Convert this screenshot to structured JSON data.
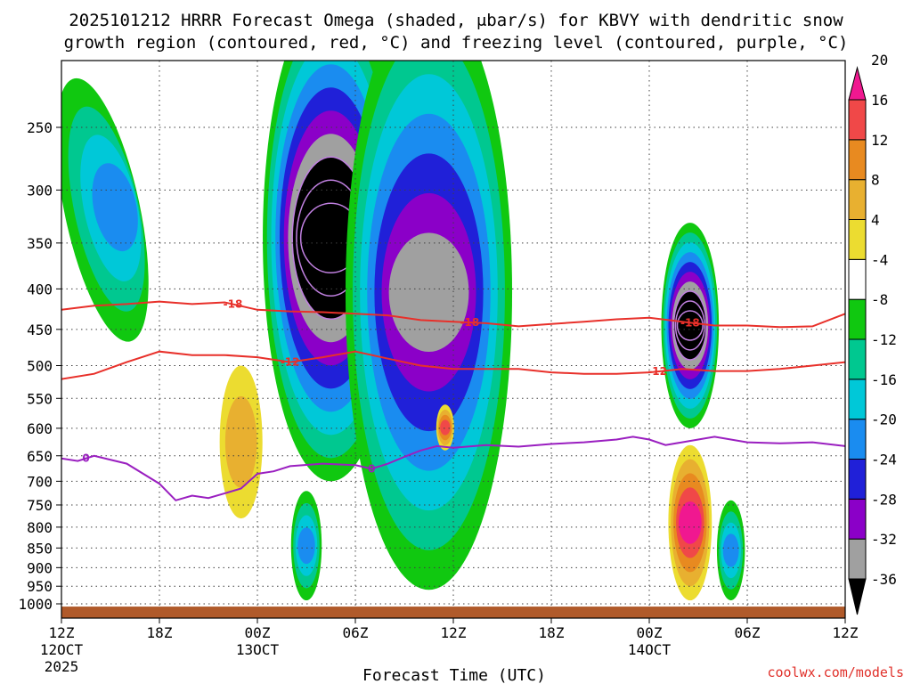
{
  "title": {
    "line1": "2025101212 HRRR Forecast Omega (shaded, μbar/s) for KBVY with dendritic snow",
    "line2": "growth region (contoured, red, °C) and freezing level (contoured, purple, °C)"
  },
  "credit": "coolwx.com/models",
  "chart_data": {
    "type": "heatmap",
    "title": "2025101212 HRRR Forecast Omega (shaded, μbar/s) for KBVY with dendritic snow growth region (contoured, red, °C) and freezing level (contoured, purple, °C)",
    "xlabel": "Forecast Time (UTC)",
    "ylabel": "",
    "xlim_hours": [
      0,
      48
    ],
    "x_ticks": [
      {
        "hour": 0,
        "label": "12Z",
        "sub1": "12OCT",
        "sub2": "2025"
      },
      {
        "hour": 6,
        "label": "18Z"
      },
      {
        "hour": 12,
        "label": "00Z",
        "sub1": "13OCT"
      },
      {
        "hour": 18,
        "label": "06Z"
      },
      {
        "hour": 24,
        "label": "12Z"
      },
      {
        "hour": 30,
        "label": "18Z"
      },
      {
        "hour": 36,
        "label": "00Z",
        "sub1": "14OCT"
      },
      {
        "hour": 42,
        "label": "06Z"
      },
      {
        "hour": 48,
        "label": "12Z"
      }
    ],
    "y_axis": {
      "variable": "pressure_hPa",
      "range": [
        1020,
        200
      ],
      "scale": "log",
      "inverted": true
    },
    "y_ticks": [
      250,
      300,
      350,
      400,
      450,
      500,
      550,
      600,
      650,
      700,
      750,
      800,
      850,
      900,
      950,
      1000
    ],
    "colorbar": {
      "levels": [
        -36,
        -32,
        -28,
        -24,
        -20,
        -16,
        -12,
        -8,
        -4,
        4,
        8,
        12,
        16,
        20
      ],
      "tick_labels": [
        "-36",
        "-32",
        "-28",
        "-24",
        "-20",
        "-16",
        "-12",
        "-8",
        "-4",
        "4",
        "8",
        "12",
        "16",
        "20"
      ],
      "colors": [
        "#000000",
        "#a0a0a0",
        "#8b00c8",
        "#2020d8",
        "#1a8cf0",
        "#00c8d8",
        "#00c890",
        "#10c810",
        "#ffffff",
        "#ecdc30",
        "#e8b030",
        "#e88a20",
        "#f04848",
        "#f01890"
      ]
    },
    "omega_features": [
      {
        "id": "ascent-early-upper",
        "hour": 2.5,
        "p_top": 215,
        "p_bot": 470,
        "min_omega": -16,
        "tilt_hours": 4
      },
      {
        "id": "ascent-main-column",
        "hour": 16.5,
        "p_top": 170,
        "p_bot": 700,
        "min_omega": -40
      },
      {
        "id": "ascent-lowlevel-day1",
        "hour": 15,
        "p_top": 720,
        "p_bot": 990,
        "min_omega": -16
      },
      {
        "id": "ascent-midday-column",
        "hour": 22.5,
        "p_top": 170,
        "p_bot": 960,
        "min_omega": -28
      },
      {
        "id": "ascent-lowlevel-late",
        "hour": 41,
        "p_top": 740,
        "p_bot": 990,
        "min_omega": -16
      },
      {
        "id": "ascent-second-max",
        "hour": 38.5,
        "p_top": 330,
        "p_bot": 600,
        "min_omega": -40
      },
      {
        "id": "descent-lowlevel-max",
        "hour": 38.5,
        "p_top": 630,
        "p_bot": 990,
        "max_omega": 22
      },
      {
        "id": "descent-midlevel-day1",
        "hour": 11,
        "p_top": 500,
        "p_bot": 780,
        "max_omega": 8
      },
      {
        "id": "descent-midlevel-day1b",
        "hour": 23.5,
        "p_top": 560,
        "p_bot": 640,
        "max_omega": 18
      }
    ],
    "series": [
      {
        "name": "-18C isotherm",
        "color": "#e8302a",
        "label": "-18",
        "x": [
          0,
          2,
          4,
          6,
          8,
          10,
          12,
          14,
          16,
          18,
          20,
          22,
          24,
          26,
          28,
          30,
          32,
          34,
          36,
          38,
          40,
          42,
          44,
          46,
          48
        ],
        "y": [
          425,
          420,
          418,
          415,
          418,
          416,
          425,
          427,
          428,
          430,
          432,
          438,
          440,
          442,
          446,
          443,
          440,
          437,
          435,
          440,
          445,
          445,
          447,
          446,
          430
        ]
      },
      {
        "name": "-12C isotherm",
        "color": "#e8302a",
        "label": "-12",
        "x": [
          0,
          2,
          4,
          6,
          8,
          10,
          12,
          14,
          16,
          18,
          20,
          22,
          24,
          26,
          28,
          30,
          32,
          34,
          36,
          38,
          40,
          42,
          44,
          46,
          48
        ],
        "y": [
          520,
          512,
          495,
          480,
          485,
          485,
          488,
          495,
          488,
          480,
          490,
          500,
          505,
          505,
          505,
          510,
          512,
          512,
          510,
          505,
          508,
          508,
          505,
          500,
          495
        ]
      },
      {
        "name": "0C freezing level",
        "color": "#9a1fc0",
        "label": "0",
        "x": [
          0,
          1,
          2,
          4,
          6,
          7,
          8,
          9,
          10,
          11,
          12,
          13,
          14,
          16,
          18,
          19,
          20,
          21,
          22,
          23,
          24,
          26,
          28,
          30,
          32,
          34,
          35,
          36,
          37,
          38,
          40,
          42,
          44,
          46,
          48
        ],
        "y": [
          655,
          660,
          650,
          665,
          705,
          740,
          730,
          735,
          725,
          715,
          685,
          680,
          670,
          665,
          668,
          675,
          665,
          652,
          640,
          632,
          635,
          630,
          633,
          628,
          625,
          620,
          615,
          620,
          630,
          625,
          615,
          625,
          627,
          625,
          632
        ]
      }
    ],
    "contour_label_positions": [
      {
        "series": "-18C isotherm",
        "hour": 10.5
      },
      {
        "series": "-18C isotherm",
        "hour": 25
      },
      {
        "series": "-18C isotherm",
        "hour": 38.5
      },
      {
        "series": "-12C isotherm",
        "hour": 14
      },
      {
        "series": "-12C isotherm",
        "hour": 36.5
      },
      {
        "series": "0C freezing level",
        "hour": 1.5
      },
      {
        "series": "0C freezing level",
        "hour": 19
      }
    ],
    "terrain_band": {
      "color": "#b05a2a",
      "p_top": 1008
    }
  }
}
